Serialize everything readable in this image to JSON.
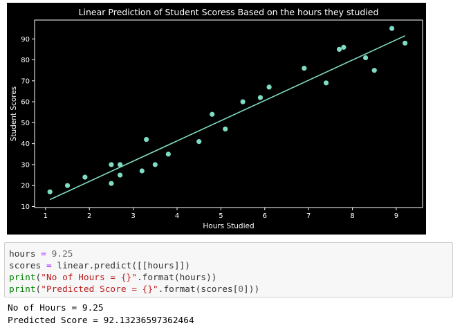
{
  "chart_data": {
    "type": "scatter",
    "title": "Linear Prediction of Student Scoress  Based on the hours they studied",
    "xlabel": "Hours Studied",
    "ylabel": "Student Scores",
    "xlim": [
      0.75,
      9.6
    ],
    "ylim": [
      9.5,
      99
    ],
    "xticks": [
      1,
      2,
      3,
      4,
      5,
      6,
      7,
      8,
      9
    ],
    "yticks": [
      10,
      20,
      30,
      40,
      50,
      60,
      70,
      80,
      90
    ],
    "grid": false,
    "colors": {
      "points": "#7fdcc4",
      "line": "#7fdcc4",
      "background": "#000000",
      "text": "#ffffff"
    },
    "points": [
      {
        "x": 1.1,
        "y": 17
      },
      {
        "x": 1.5,
        "y": 20
      },
      {
        "x": 1.9,
        "y": 24
      },
      {
        "x": 2.5,
        "y": 21
      },
      {
        "x": 2.5,
        "y": 30
      },
      {
        "x": 2.7,
        "y": 25
      },
      {
        "x": 2.7,
        "y": 30
      },
      {
        "x": 3.2,
        "y": 27
      },
      {
        "x": 3.3,
        "y": 42
      },
      {
        "x": 3.5,
        "y": 30
      },
      {
        "x": 3.8,
        "y": 35
      },
      {
        "x": 4.5,
        "y": 41
      },
      {
        "x": 4.8,
        "y": 54
      },
      {
        "x": 5.1,
        "y": 47
      },
      {
        "x": 5.5,
        "y": 60
      },
      {
        "x": 5.9,
        "y": 62
      },
      {
        "x": 6.1,
        "y": 67
      },
      {
        "x": 6.9,
        "y": 76
      },
      {
        "x": 7.4,
        "y": 69
      },
      {
        "x": 7.7,
        "y": 85
      },
      {
        "x": 7.8,
        "y": 86
      },
      {
        "x": 8.3,
        "y": 81
      },
      {
        "x": 8.5,
        "y": 75
      },
      {
        "x": 8.9,
        "y": 95
      },
      {
        "x": 9.2,
        "y": 88
      }
    ],
    "regression_line": {
      "x": [
        1.1,
        9.2
      ],
      "y": [
        13.3,
        91.5
      ]
    }
  },
  "code": {
    "lines": [
      [
        {
          "t": "hours ",
          "c": ""
        },
        {
          "t": "=",
          "c": "op"
        },
        {
          "t": " ",
          "c": ""
        },
        {
          "t": "9.25",
          "c": "num"
        }
      ],
      [
        {
          "t": "scores ",
          "c": ""
        },
        {
          "t": "=",
          "c": "op"
        },
        {
          "t": " linear.predict([[hours]])",
          "c": ""
        }
      ],
      [
        {
          "t": "print",
          "c": "kw"
        },
        {
          "t": "(",
          "c": ""
        },
        {
          "t": "\"No of Hours = {}\"",
          "c": "str"
        },
        {
          "t": ".format(hours))",
          "c": ""
        }
      ],
      [
        {
          "t": "print",
          "c": "kw"
        },
        {
          "t": "(",
          "c": ""
        },
        {
          "t": "\"Predicted Score = {}\"",
          "c": "str"
        },
        {
          "t": ".format(scores[",
          "c": ""
        },
        {
          "t": "0",
          "c": "num"
        },
        {
          "t": "]))",
          "c": ""
        }
      ]
    ]
  },
  "output": {
    "lines": [
      "No of Hours = 9.25",
      "Predicted Score = 92.13236597362464"
    ]
  }
}
